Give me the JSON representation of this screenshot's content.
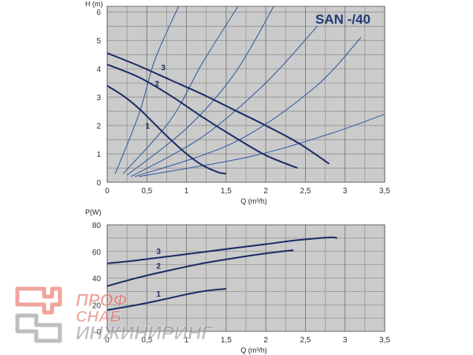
{
  "chart_data": [
    {
      "type": "line",
      "title": "SAN -/40",
      "xlabel": "Q (m³/h)",
      "ylabel": "H (m)",
      "xlim": [
        0,
        3.5
      ],
      "ylim": [
        0,
        6.2
      ],
      "x_ticks": [
        0,
        0.5,
        1,
        1.5,
        2,
        2.5,
        3,
        3.5
      ],
      "x_tick_labels": [
        "0",
        "0,5",
        "1",
        "1,5",
        "2",
        "2,5",
        "3",
        "3,5"
      ],
      "y_ticks": [
        0,
        1,
        2,
        3,
        4,
        5,
        6
      ],
      "y_tick_labels": [
        "0",
        "1",
        "2",
        "3",
        "4",
        "5",
        "6"
      ],
      "grid": true,
      "series": [
        {
          "label": "1",
          "x": [
            0,
            0.2,
            0.4,
            0.6,
            0.8,
            1.0,
            1.2,
            1.4,
            1.5
          ],
          "y": [
            3.4,
            3.05,
            2.6,
            2.05,
            1.5,
            1.0,
            0.6,
            0.35,
            0.3
          ]
        },
        {
          "label": "2",
          "x": [
            0,
            0.4,
            0.8,
            1.2,
            1.6,
            2.0,
            2.4
          ],
          "y": [
            4.15,
            3.7,
            3.05,
            2.3,
            1.6,
            0.95,
            0.5
          ]
        },
        {
          "label": "3",
          "x": [
            0,
            0.4,
            0.8,
            1.2,
            1.6,
            2.0,
            2.4,
            2.8
          ],
          "y": [
            4.55,
            4.1,
            3.6,
            3.1,
            2.55,
            2.0,
            1.4,
            0.65
          ]
        }
      ],
      "system_curves": [
        {
          "x": [
            0.1,
            0.4,
            0.6,
            0.9
          ],
          "y": [
            0.3,
            2.4,
            4.3,
            6.2
          ]
        },
        {
          "x": [
            0.2,
            0.8,
            1.2,
            1.65
          ],
          "y": [
            0.3,
            2.2,
            4.2,
            6.2
          ]
        },
        {
          "x": [
            0.25,
            1.0,
            1.6,
            2.1
          ],
          "y": [
            0.25,
            1.9,
            3.8,
            6.2
          ]
        },
        {
          "x": [
            0.3,
            1.2,
            2.0,
            2.65
          ],
          "y": [
            0.2,
            1.6,
            3.5,
            5.5
          ]
        },
        {
          "x": [
            0.35,
            1.6,
            2.6,
            3.2
          ],
          "y": [
            0.2,
            1.4,
            3.3,
            5.1
          ]
        },
        {
          "x": [
            0.4,
            1.8,
            2.8,
            3.5
          ],
          "y": [
            0.2,
            0.9,
            1.7,
            2.4
          ]
        }
      ]
    },
    {
      "type": "line",
      "title": "",
      "xlabel": "Q (m³/h)",
      "ylabel": "P(W)",
      "xlim": [
        0,
        3.5
      ],
      "ylim": [
        0,
        80
      ],
      "x_ticks": [
        0,
        0.5,
        1,
        1.5,
        2,
        2.5,
        3,
        3.5
      ],
      "x_tick_labels": [
        "0",
        "0,5",
        "1",
        "1,5",
        "2",
        "2,5",
        "3",
        "3,5"
      ],
      "y_ticks": [
        0,
        20,
        40,
        60,
        80
      ],
      "y_tick_labels": [
        "0",
        "20",
        "40",
        "60",
        "80"
      ],
      "grid": true,
      "series": [
        {
          "label": "1",
          "x": [
            0,
            0.3,
            0.6,
            0.9,
            1.2,
            1.5
          ],
          "y": [
            16,
            19,
            22.5,
            26.5,
            30,
            32
          ]
        },
        {
          "label": "2",
          "x": [
            0,
            0.4,
            0.8,
            1.2,
            1.6,
            2.0,
            2.35
          ],
          "y": [
            34,
            40.5,
            46,
            51,
            55,
            58.5,
            61
          ]
        },
        {
          "label": "3",
          "x": [
            0,
            0.4,
            0.8,
            1.2,
            1.6,
            2.0,
            2.4,
            2.8,
            2.9
          ],
          "y": [
            51,
            53.5,
            56.5,
            59.5,
            62.5,
            65.5,
            68.5,
            70.5,
            70
          ]
        }
      ]
    }
  ],
  "watermark": {
    "line1": "ПРОФ",
    "line2": "СНАБ",
    "line3": "ИНЖИНИРИНГ"
  },
  "colors": {
    "plot_bg": "#cbcbcb",
    "grid": "#7a7a7a",
    "pump_curve": "#1a2c66",
    "system_curve": "#2b5a9e",
    "title": "#1f3a78"
  }
}
